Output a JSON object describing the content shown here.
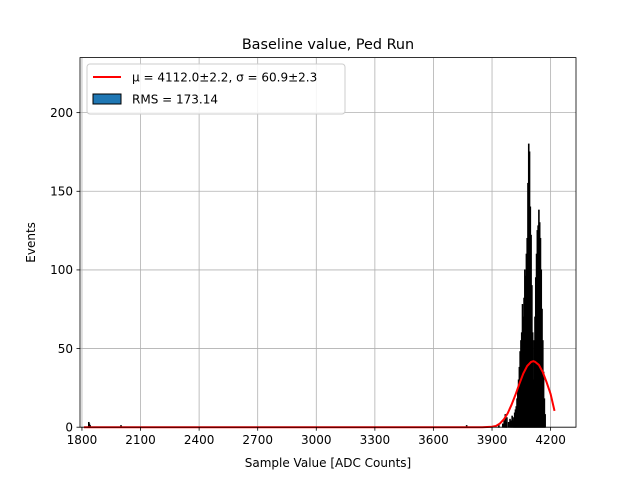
{
  "chart_data": {
    "type": "bar",
    "title": "Baseline value, Ped Run",
    "xlabel": "Sample Value [ADC Counts]",
    "ylabel": "Events",
    "xlim": [
      1790,
      4330
    ],
    "ylim": [
      0,
      235
    ],
    "xticks": [
      1800,
      2100,
      2400,
      2700,
      3000,
      3300,
      3600,
      3900,
      4200
    ],
    "yticks": [
      0,
      50,
      100,
      150,
      200
    ],
    "grid": true,
    "legend_position": "top-left",
    "legend": [
      {
        "label": "μ = 4112.0±2.2, σ = 60.9±2.3",
        "kind": "line",
        "color": "#ff0000"
      },
      {
        "label": "RMS = 173.14",
        "kind": "patch",
        "color": "#1f77b4"
      }
    ],
    "histogram": {
      "name": "RMS = 173.14",
      "fill_color": "#1f77b4",
      "edge_color": "#000000",
      "bins": [
        [
          1835,
          3
        ],
        [
          1838,
          2
        ],
        [
          1842,
          1
        ],
        [
          2000,
          1
        ],
        [
          3770,
          1
        ],
        [
          3935,
          1
        ],
        [
          3955,
          2
        ],
        [
          3962,
          4
        ],
        [
          3968,
          8
        ],
        [
          3972,
          3
        ],
        [
          3976,
          6
        ],
        [
          3985,
          3
        ],
        [
          3992,
          5
        ],
        [
          3998,
          4
        ],
        [
          4003,
          7
        ],
        [
          4008,
          6
        ],
        [
          4012,
          4
        ],
        [
          4016,
          9
        ],
        [
          4020,
          11
        ],
        [
          4024,
          13
        ],
        [
          4028,
          18
        ],
        [
          4032,
          25
        ],
        [
          4036,
          30
        ],
        [
          4040,
          38
        ],
        [
          4044,
          48
        ],
        [
          4048,
          55
        ],
        [
          4052,
          60
        ],
        [
          4056,
          78
        ],
        [
          4060,
          70
        ],
        [
          4064,
          82
        ],
        [
          4068,
          100
        ],
        [
          4072,
          96
        ],
        [
          4076,
          110
        ],
        [
          4080,
          120
        ],
        [
          4084,
          155
        ],
        [
          4088,
          180
        ],
        [
          4092,
          175
        ],
        [
          4096,
          140
        ],
        [
          4100,
          122
        ],
        [
          4104,
          90
        ],
        [
          4108,
          60
        ],
        [
          4112,
          30
        ],
        [
          4116,
          55
        ],
        [
          4120,
          70
        ],
        [
          4124,
          95
        ],
        [
          4128,
          110
        ],
        [
          4132,
          125
        ],
        [
          4136,
          128
        ],
        [
          4140,
          138
        ],
        [
          4144,
          130
        ],
        [
          4148,
          120
        ],
        [
          4152,
          100
        ],
        [
          4156,
          75
        ],
        [
          4160,
          55
        ],
        [
          4164,
          35
        ],
        [
          4168,
          18
        ],
        [
          4172,
          8
        ]
      ]
    },
    "fit": {
      "name": "μ = 4112.0±2.2, σ = 60.9±2.3",
      "color": "#ff0000",
      "x": [
        1810,
        1900,
        2000,
        2100,
        2200,
        2300,
        2400,
        2500,
        2600,
        2700,
        2800,
        2900,
        3000,
        3100,
        3200,
        3300,
        3400,
        3500,
        3600,
        3700,
        3800,
        3850,
        3900,
        3920,
        3940,
        3960,
        3980,
        4000,
        4020,
        4040,
        4060,
        4080,
        4100,
        4112,
        4120,
        4140,
        4160,
        4180,
        4200,
        4220
      ],
      "y": [
        0,
        0,
        0,
        0,
        0,
        0,
        0,
        0,
        0,
        0,
        0,
        0,
        0,
        0,
        0,
        0,
        0,
        0,
        0,
        0,
        0,
        0,
        0.3,
        0.8,
        2.3,
        4.9,
        8.8,
        14.3,
        20.6,
        27.6,
        34.1,
        38.9,
        41.5,
        42.0,
        41.6,
        39.6,
        35.0,
        28.4,
        21.1,
        10.4
      ]
    }
  }
}
